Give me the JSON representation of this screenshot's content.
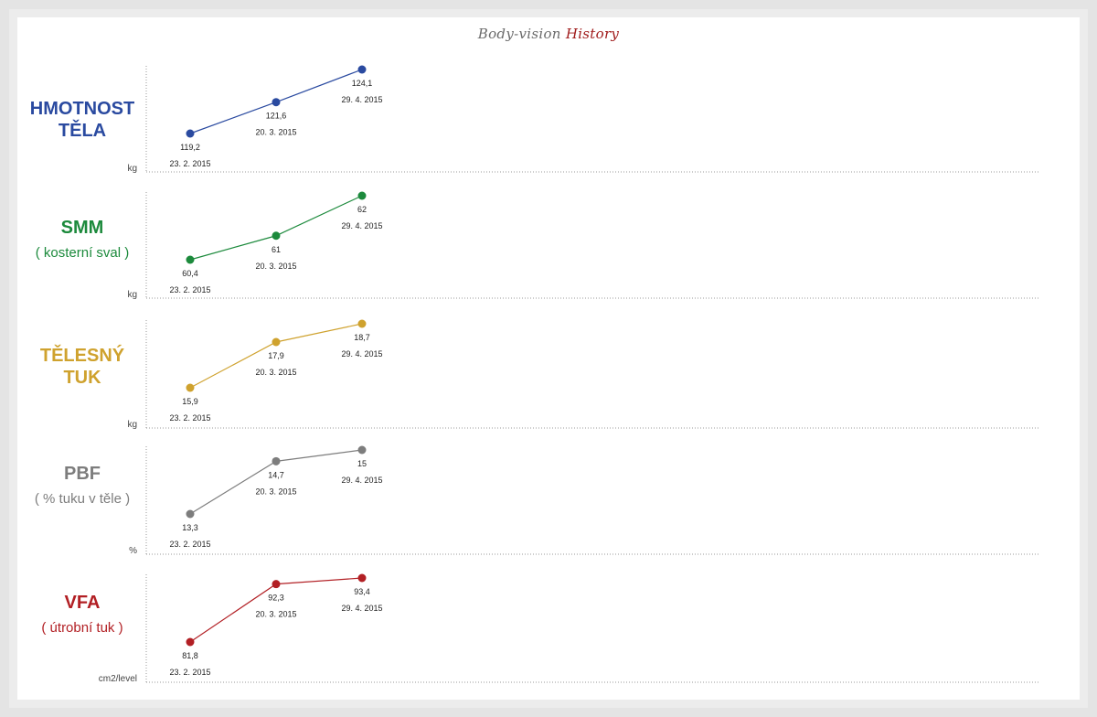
{
  "title": {
    "part1": "Body-vision",
    "part2": "History"
  },
  "chart_data": [
    {
      "type": "line",
      "label": [
        "HMOTNOST",
        "TĚLA"
      ],
      "sublabel": "",
      "unit": "kg",
      "color": "#2a4aa0",
      "x": [
        "23. 2. 2015",
        "20. 3. 2015",
        "29. 4. 2015"
      ],
      "values": [
        119.2,
        121.6,
        124.1
      ],
      "value_labels": [
        "119,2",
        "121,6",
        "124,1"
      ]
    },
    {
      "type": "line",
      "label": [
        "SMM"
      ],
      "sublabel": "( kosterní sval )",
      "unit": "kg",
      "color": "#1c8a3c",
      "x": [
        "23. 2. 2015",
        "20. 3. 2015",
        "29. 4. 2015"
      ],
      "values": [
        60.4,
        61,
        62
      ],
      "value_labels": [
        "60,4",
        "61",
        "62"
      ]
    },
    {
      "type": "line",
      "label": [
        "TĚLESNÝ",
        "TUK"
      ],
      "sublabel": "",
      "unit": "kg",
      "color": "#cfa22e",
      "x": [
        "23. 2. 2015",
        "20. 3. 2015",
        "29. 4. 2015"
      ],
      "values": [
        15.9,
        17.9,
        18.7
      ],
      "value_labels": [
        "15,9",
        "17,9",
        "18,7"
      ]
    },
    {
      "type": "line",
      "label": [
        "PBF"
      ],
      "sublabel": "( % tuku v těle )",
      "unit": "%",
      "color": "#7d7d7d",
      "x": [
        "23. 2. 2015",
        "20. 3. 2015",
        "29. 4. 2015"
      ],
      "values": [
        13.3,
        14.7,
        15
      ],
      "value_labels": [
        "13,3",
        "14,7",
        "15"
      ]
    },
    {
      "type": "line",
      "label": [
        "VFA"
      ],
      "sublabel": "( útrobní tuk )",
      "unit": "cm2/level",
      "color": "#b21f24",
      "x": [
        "23. 2. 2015",
        "20. 3. 2015",
        "29. 4. 2015"
      ],
      "values": [
        81.8,
        92.3,
        93.4
      ],
      "value_labels": [
        "81,8",
        "92,3",
        "93,4"
      ]
    }
  ]
}
